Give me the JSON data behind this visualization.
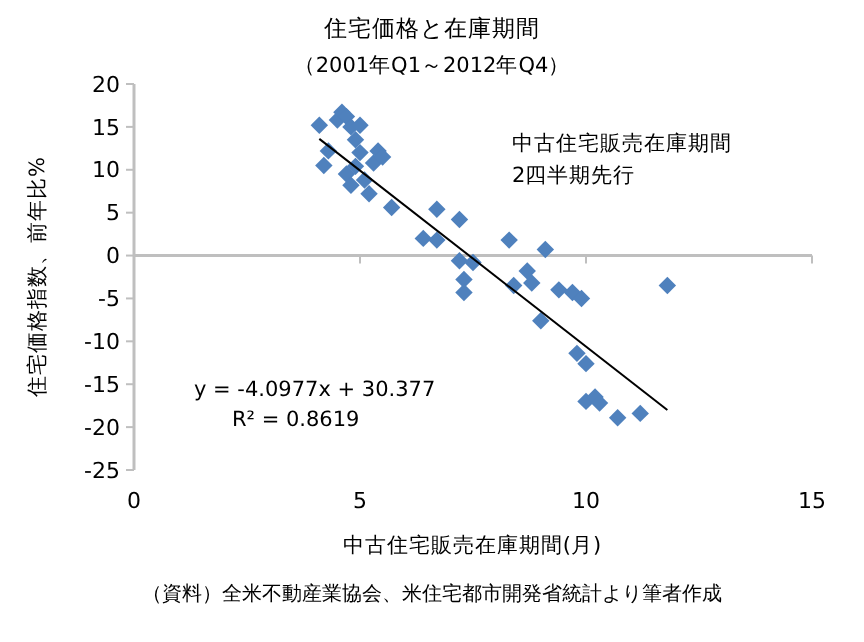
{
  "chart_data": {
    "type": "scatter",
    "title": "住宅価格と在庫期間",
    "subtitle": "（2001年Q1～2012年Q4）",
    "xlabel": "中古住宅販売在庫期間(月)",
    "ylabel": "住宅価格指数、前年比%",
    "xlim": [
      0,
      15
    ],
    "xticks": [
      0,
      5,
      10,
      15
    ],
    "ylim": [
      -25,
      20
    ],
    "yticks": [
      -25,
      -20,
      -15,
      -10,
      -5,
      0,
      5,
      10,
      15,
      20
    ],
    "marker": "diamond",
    "series": [
      {
        "color": "#4f81bd",
        "x": [
          4.1,
          4.2,
          4.3,
          4.5,
          4.6,
          4.7,
          4.7,
          4.8,
          4.8,
          4.9,
          4.9,
          5.0,
          5.0,
          5.1,
          5.2,
          5.3,
          5.4,
          5.5,
          5.7,
          6.4,
          6.7,
          6.7,
          7.2,
          7.2,
          7.3,
          7.3,
          7.5,
          8.3,
          8.7,
          8.4,
          8.8,
          9.0,
          9.1,
          9.4,
          9.7,
          9.9,
          9.8,
          10.0,
          10.0,
          10.2,
          10.3,
          10.7,
          11.2,
          11.8
        ],
        "values": [
          15.2,
          10.5,
          12.2,
          15.8,
          16.7,
          16.2,
          9.5,
          15,
          8.2,
          13.5,
          10.4,
          15.2,
          12,
          8.8,
          7.2,
          10.8,
          12.2,
          11.5,
          5.6,
          2,
          1.8,
          5.4,
          4.2,
          -0.6,
          -2.8,
          -4.3,
          -0.8,
          1.8,
          -1.8,
          -3.5,
          -3.2,
          -7.6,
          0.7,
          -4,
          -4.3,
          -5,
          -11.4,
          -12.6,
          -17,
          -16.5,
          -17.2,
          -18.9,
          -18.4,
          -3.5
        ]
      },
      {
        "type": "line",
        "color": "#000000",
        "marker": "none",
        "x": [
          4.1,
          11.8
        ],
        "values": [
          13.6,
          -18.0
        ]
      }
    ],
    "annotations": [
      "y = -4.0977x + 30.377",
      "R² = 0.8619",
      "中古住宅販売在庫期間",
      "2四半期先行",
      "（資料）全米不動産業協会、米住宅都市開発省統計より筆者作成"
    ]
  }
}
